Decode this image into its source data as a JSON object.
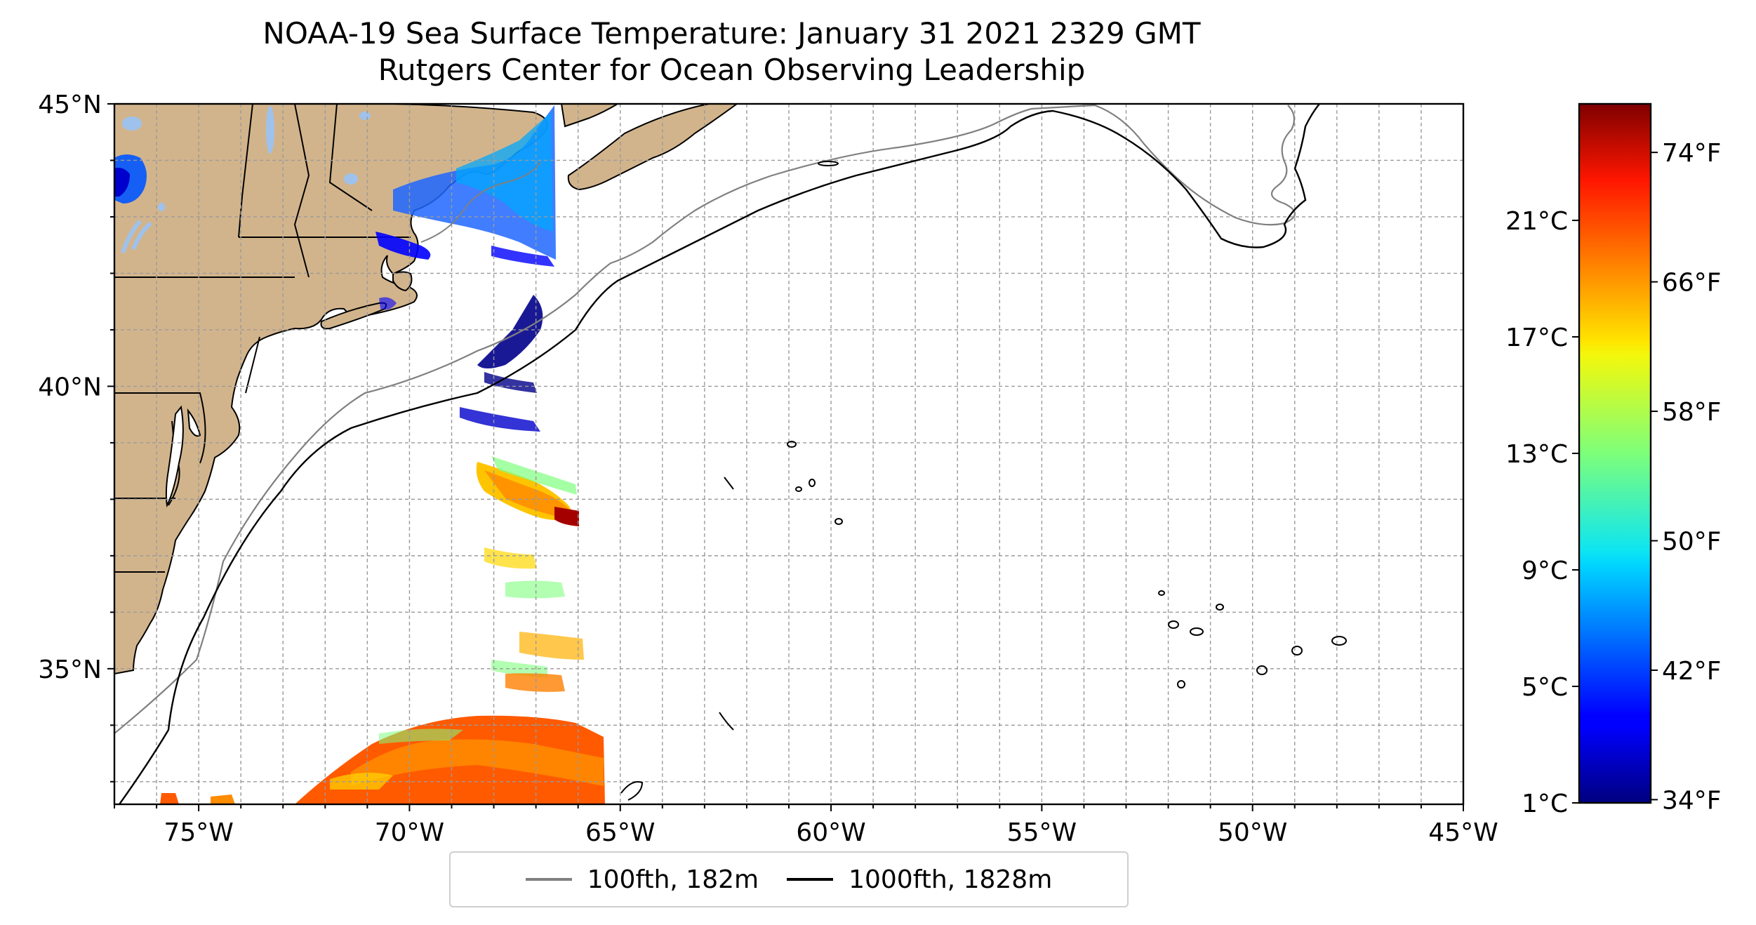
{
  "title": {
    "line1": "NOAA-19 Sea Surface Temperature: January 31 2021 2329 GMT",
    "line2": "Rutgers Center for Ocean Observing Leadership"
  },
  "map": {
    "lon_range": [
      -77,
      -45
    ],
    "lat_range": [
      32.6,
      45
    ],
    "land_color": "#d2b48c",
    "lake_color": "#9fc2ec",
    "grid": "dashed, every 1 degree",
    "lat_ticks": [
      {
        "value": 45,
        "label": "45°N"
      },
      {
        "value": 40,
        "label": "40°N"
      },
      {
        "value": 35,
        "label": "35°N"
      }
    ],
    "lon_ticks": [
      {
        "value": -75,
        "label": "75°W"
      },
      {
        "value": -70,
        "label": "70°W"
      },
      {
        "value": -65,
        "label": "65°W"
      },
      {
        "value": -60,
        "label": "60°W"
      },
      {
        "value": -55,
        "label": "55°W"
      },
      {
        "value": -50,
        "label": "50°W"
      },
      {
        "value": -45,
        "label": "45°W"
      }
    ]
  },
  "legend": {
    "placement": "bottom-center",
    "entries": [
      {
        "label": "100fth, 182m",
        "color": "#808080"
      },
      {
        "label": "1000fth, 1828m",
        "color": "#000000"
      }
    ]
  },
  "colorbar": {
    "colormap": "jet",
    "range_c": [
      1,
      25
    ],
    "celsius_ticks": [
      {
        "value": 21,
        "label": "21°C"
      },
      {
        "value": 17,
        "label": "17°C"
      },
      {
        "value": 13,
        "label": "13°C"
      },
      {
        "value": 9,
        "label": "9°C"
      },
      {
        "value": 5,
        "label": "5°C"
      },
      {
        "value": 1,
        "label": "1°C"
      }
    ],
    "fahrenheit_ticks": [
      {
        "value": 74,
        "label": "74°F"
      },
      {
        "value": 66,
        "label": "66°F"
      },
      {
        "value": 58,
        "label": "58°F"
      },
      {
        "value": 50,
        "label": "50°F"
      },
      {
        "value": 42,
        "label": "42°F"
      },
      {
        "value": 34,
        "label": "34°F"
      }
    ]
  }
}
